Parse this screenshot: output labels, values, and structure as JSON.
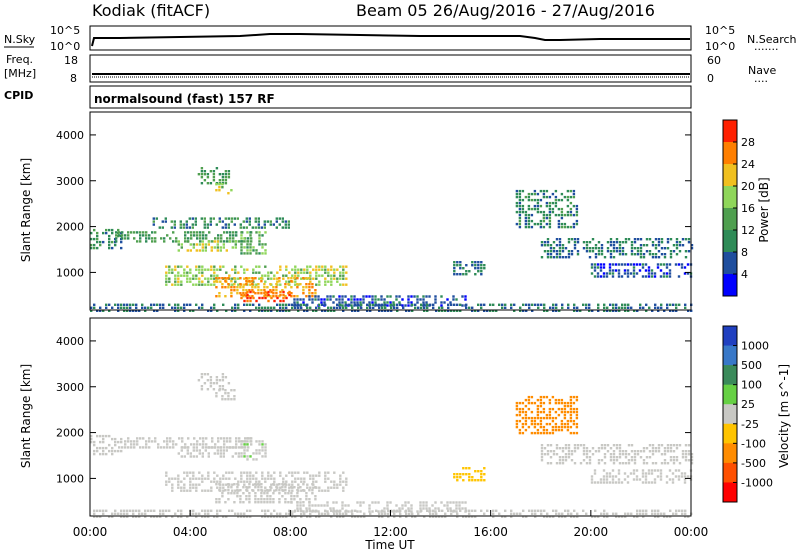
{
  "header": {
    "station": "Kodiak (fitACF)",
    "beam_dates": "Beam 05 26/Aug/2016 - 27/Aug/2016"
  },
  "nsky_panel": {
    "left_label": "N.Sky",
    "right_label": "N.Search",
    "tick_top": "10^5",
    "tick_bottom": "10^0",
    "dots": "......."
  },
  "freq_panel": {
    "left_label_line1": "Freq.",
    "left_label_line2": "[MHz]",
    "left_tick_top": "18",
    "left_tick_bottom": "8",
    "right_label": "Nave",
    "right_tick_top": "60",
    "right_tick_bottom": "0",
    "dots": "....",
    "cpid_label": "CPID",
    "cpid_value": "normalsound (fast) 157 RF"
  },
  "chart_data": [
    {
      "type": "heatmap",
      "title": "Power",
      "ylabel": "Slant Range [km]",
      "ylim": [
        180,
        4500
      ],
      "yticks": [
        "1000",
        "2000",
        "3000",
        "4000"
      ],
      "colorbar_label": "Power [dB]",
      "colorbar_ticks": [
        "4",
        "8",
        "12",
        "16",
        "20",
        "24",
        "28"
      ],
      "colors": [
        "#0000ff",
        "#1f4e9e",
        "#2e8b57",
        "#4f9f4f",
        "#8fd65a",
        "#f0c020",
        "#ff7f00",
        "#ff2000"
      ],
      "regions": [
        {
          "t": [
            0.0,
            1.2
          ],
          "r": [
            1550,
            1950
          ],
          "v": 10
        },
        {
          "t": [
            1.0,
            6.5
          ],
          "r": [
            1700,
            1900
          ],
          "v": 12
        },
        {
          "t": [
            3.5,
            6.0
          ],
          "r": [
            1450,
            1700
          ],
          "v": 18
        },
        {
          "t": [
            6.0,
            7.0
          ],
          "r": [
            1400,
            1900
          ],
          "v": 14
        },
        {
          "t": [
            4.3,
            5.5
          ],
          "r": [
            2950,
            3300
          ],
          "v": 12
        },
        {
          "t": [
            5.0,
            5.8
          ],
          "r": [
            2700,
            2950
          ],
          "v": 18
        },
        {
          "t": [
            2.5,
            8.0
          ],
          "r": [
            2000,
            2200
          ],
          "v": 10
        },
        {
          "t": [
            3.0,
            10.2
          ],
          "r": [
            700,
            1150
          ],
          "v": 18
        },
        {
          "t": [
            5.0,
            9.0
          ],
          "r": [
            500,
            900
          ],
          "v": 24
        },
        {
          "t": [
            6.0,
            8.0
          ],
          "r": [
            350,
            600
          ],
          "v": 28
        },
        {
          "t": [
            8.0,
            15.0
          ],
          "r": [
            300,
            500
          ],
          "v": 6
        },
        {
          "t": [
            14.5,
            15.8
          ],
          "r": [
            950,
            1250
          ],
          "v": 8
        },
        {
          "t": [
            17.0,
            19.5
          ],
          "r": [
            2000,
            2800
          ],
          "v": 10
        },
        {
          "t": [
            18.0,
            24.0
          ],
          "r": [
            1300,
            1750
          ],
          "v": 8
        },
        {
          "t": [
            20.0,
            24.0
          ],
          "r": [
            900,
            1200
          ],
          "v": 6
        },
        {
          "t": [
            0.0,
            24.0
          ],
          "r": [
            180,
            320
          ],
          "v": 8
        }
      ]
    },
    {
      "type": "heatmap",
      "title": "Velocity",
      "ylabel": "Slant Range [km]",
      "xlabel": "Time UT",
      "ylim": [
        180,
        4500
      ],
      "yticks": [
        "1000",
        "2000",
        "3000",
        "4000"
      ],
      "xticks": [
        "00:00",
        "04:00",
        "08:00",
        "12:00",
        "16:00",
        "20:00",
        "00:00"
      ],
      "xlim": [
        0,
        24
      ],
      "colorbar_label": "Velocity [m s^-1]",
      "colorbar_ticks": [
        "1000",
        "500",
        "100",
        "25",
        "-25",
        "-100",
        "-500",
        "-1000"
      ],
      "colors": [
        "#2040c0",
        "#3878c8",
        "#3a8a5a",
        "#66d044",
        "#c8c8c4",
        "#ffc400",
        "#ff8c00",
        "#ff5000",
        "#ff0000"
      ],
      "regions": [
        {
          "t": [
            0.0,
            1.2
          ],
          "r": [
            1550,
            1950
          ],
          "v": 0
        },
        {
          "t": [
            1.0,
            6.5
          ],
          "r": [
            1700,
            1900
          ],
          "v": 0
        },
        {
          "t": [
            3.5,
            6.0
          ],
          "r": [
            1450,
            1700
          ],
          "v": 0
        },
        {
          "t": [
            6.0,
            7.0
          ],
          "r": [
            1400,
            1900
          ],
          "v": 10
        },
        {
          "t": [
            4.3,
            5.5
          ],
          "r": [
            2950,
            3300
          ],
          "v": 0
        },
        {
          "t": [
            5.0,
            5.8
          ],
          "r": [
            2700,
            2950
          ],
          "v": 0
        },
        {
          "t": [
            3.0,
            10.2
          ],
          "r": [
            700,
            1150
          ],
          "v": 0
        },
        {
          "t": [
            5.0,
            9.0
          ],
          "r": [
            500,
            900
          ],
          "v": -5
        },
        {
          "t": [
            8.0,
            15.0
          ],
          "r": [
            300,
            500
          ],
          "v": 0
        },
        {
          "t": [
            14.5,
            15.8
          ],
          "r": [
            950,
            1250
          ],
          "v": -60
        },
        {
          "t": [
            17.0,
            19.5
          ],
          "r": [
            2000,
            2800
          ],
          "v": -150
        },
        {
          "t": [
            18.0,
            24.0
          ],
          "r": [
            1300,
            1750
          ],
          "v": 0
        },
        {
          "t": [
            20.0,
            24.0
          ],
          "r": [
            900,
            1200
          ],
          "v": 0
        },
        {
          "t": [
            0.0,
            24.0
          ],
          "r": [
            180,
            320
          ],
          "v": 0
        }
      ]
    }
  ]
}
